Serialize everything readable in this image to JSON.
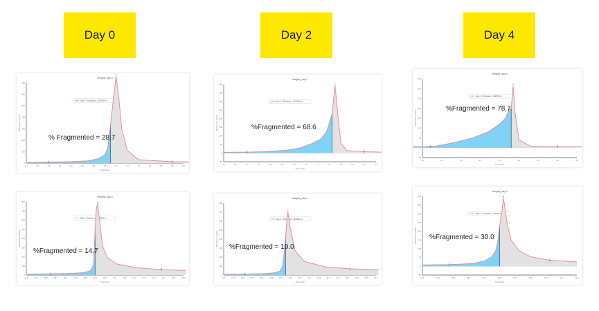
{
  "days": [
    {
      "label": "Day 0"
    },
    {
      "label": "Day 2"
    },
    {
      "label": "Day 4"
    }
  ],
  "colors": {
    "label_bg": "#ffe800",
    "trace": "#e8868a",
    "fragment_fill": "#7fd4f5",
    "main_fill": "#e2e2e2",
    "axis": "#555555"
  },
  "chart_data": [
    {
      "type": "area",
      "title": "Integrity_day 0",
      "legend": "Day 0 - 35 degrees - 220/260 nm",
      "x_ticks": [
        "5.4",
        "5.6",
        "5.8",
        "6.0",
        "6.2",
        "6.4",
        "6.6",
        "6.8",
        "7.0",
        "7.2",
        "7.4",
        "7.6",
        "7.8",
        "8.0",
        "8.2"
      ],
      "y_ticks": [
        "0",
        "100",
        "200",
        "300",
        "400",
        "500",
        "600",
        "700"
      ],
      "xlabel": "Time (min)",
      "ylabel": "Absorbance (mAU)",
      "peak_x": 7.0,
      "split_x": 6.9,
      "fragmented_pct": 28.7,
      "label": "% Fragmented = 28.7",
      "x": [
        5.4,
        5.8,
        6.2,
        6.5,
        6.7,
        6.8,
        6.85,
        6.9,
        6.95,
        7.0,
        7.05,
        7.1,
        7.2,
        7.4,
        8.0,
        8.4
      ],
      "y": [
        8,
        9,
        12,
        20,
        40,
        75,
        130,
        330,
        560,
        760,
        560,
        300,
        110,
        30,
        12,
        10
      ]
    },
    {
      "type": "area",
      "title": "Integrity_day 2",
      "legend": "Day 2 - 35 degrees - 220/260 nm",
      "x_ticks": [
        "5.8",
        "6.0",
        "6.2",
        "6.4",
        "6.6",
        "6.8",
        "7.0",
        "7.2",
        "7.4",
        "7.6",
        "7.8",
        "8.0",
        "8.2",
        "8.4"
      ],
      "y_ticks": [
        "-50",
        "0",
        "50",
        "100",
        "150",
        "200",
        "250",
        "300",
        "350",
        "400"
      ],
      "xlabel": "Time (min)",
      "ylabel": "Absorbance (mAU)",
      "peak_x": 7.7,
      "split_x": 7.65,
      "fragmented_pct": 68.6,
      "label": "%Fragmented = 68.6",
      "x": [
        5.8,
        6.2,
        6.5,
        6.9,
        7.1,
        7.3,
        7.45,
        7.55,
        7.6,
        7.65,
        7.7,
        7.75,
        7.8,
        7.9,
        8.2,
        8.5
      ],
      "y": [
        5,
        6,
        8,
        18,
        30,
        55,
        80,
        120,
        170,
        230,
        395,
        220,
        60,
        15,
        8,
        6
      ]
    },
    {
      "type": "area",
      "title": "Integrity_day 4",
      "legend": "Day 4 - 35 degrees - 220/260 nm",
      "x_ticks": [
        "0.5",
        "1.0",
        "1.5",
        "2.0",
        "2.5",
        "3.0",
        "3.5",
        "4.0",
        "4.5"
      ],
      "y_ticks": [
        "-50",
        "0",
        "50",
        "100",
        "150",
        "200",
        "250",
        "300",
        "350"
      ],
      "xlabel": "Time (min)",
      "ylabel": "Absorbance (mAU)",
      "peak_x": 2.85,
      "split_x": 2.8,
      "fragmented_pct": 78.7,
      "label": "%Fragmented = 78.7",
      "x": [
        0.2,
        0.7,
        0.9,
        1.3,
        1.8,
        2.2,
        2.5,
        2.65,
        2.75,
        2.8,
        2.85,
        2.9,
        3.0,
        3.3,
        4.0,
        4.8
      ],
      "y": [
        5,
        6,
        10,
        25,
        50,
        80,
        120,
        150,
        195,
        200,
        315,
        180,
        40,
        8,
        6,
        5
      ]
    },
    {
      "type": "area",
      "title": "Integrity_day 0",
      "legend": "Day 0 - 35 degrees - 220/260 nm",
      "x_ticks": [
        "27.5",
        "27.9",
        "28.3",
        "28.7",
        "29.1",
        "29.5",
        "29.9",
        "30.3",
        "30.7",
        "31.1",
        "31.5",
        "31.9",
        "32.3",
        "32.7",
        "33.1",
        "33.5",
        "33.9"
      ],
      "y_ticks": [
        "0",
        "100",
        "200",
        "300",
        "400",
        "500",
        "600",
        "700",
        "800"
      ],
      "xlabel": "Time (min)",
      "ylabel": "Absorbance (mAU)",
      "peak_x": 30.4,
      "split_x": 30.3,
      "fragmented_pct": 14.7,
      "label": "%Fragmented = 14.7",
      "x": [
        27.5,
        28.5,
        29.3,
        29.8,
        30.1,
        30.2,
        30.25,
        30.3,
        30.35,
        30.4,
        30.5,
        30.6,
        30.8,
        31.2,
        32.0,
        33.0,
        34.0
      ],
      "y": [
        12,
        14,
        18,
        26,
        45,
        90,
        160,
        500,
        720,
        780,
        560,
        320,
        190,
        120,
        80,
        60,
        50
      ]
    },
    {
      "type": "area",
      "title": "Integrity_day 2",
      "legend": "Day 2 - 35 degrees - 220/260 nm",
      "x_ticks": [
        "27.5",
        "27.9",
        "28.3",
        "28.7",
        "29.1",
        "29.5",
        "29.9",
        "30.3",
        "30.7",
        "31.1",
        "31.5",
        "31.9",
        "32.3",
        "32.7",
        "33.1",
        "33.5",
        "33.9"
      ],
      "y_ticks": [
        "0",
        "100",
        "200",
        "300",
        "400",
        "500",
        "600",
        "700",
        "800"
      ],
      "xlabel": "Time (min)",
      "ylabel": "Absorbance (mAU)",
      "peak_x": 30.2,
      "split_x": 30.1,
      "fragmented_pct": 19.0,
      "label": "%Fragmented = 19.0",
      "x": [
        27.5,
        28.4,
        29.2,
        29.6,
        29.85,
        29.95,
        30.0,
        30.05,
        30.1,
        30.15,
        30.2,
        30.3,
        30.5,
        30.9,
        31.8,
        32.8,
        34.0
      ],
      "y": [
        10,
        12,
        16,
        24,
        42,
        80,
        150,
        260,
        420,
        600,
        700,
        520,
        270,
        150,
        90,
        70,
        60
      ]
    },
    {
      "type": "area",
      "title": "Integrity_day 4",
      "legend": "Day 4 - 35 degrees - 220/260 nm",
      "x_ticks": [
        "27.5",
        "27.9",
        "28.3",
        "28.7",
        "29.1",
        "29.5",
        "29.9",
        "30.3",
        "30.7",
        "31.1",
        "31.5"
      ],
      "y_ticks": [
        "-50",
        "0",
        "50",
        "100",
        "150",
        "200",
        "250",
        "300",
        "350",
        "400"
      ],
      "xlabel": "Time (min)",
      "ylabel": "Absorbance (mAU)",
      "peak_x": 29.6,
      "split_x": 29.5,
      "fragmented_pct": 30.0,
      "label": "%Fragmented = 30.0",
      "x": [
        27.5,
        28.2,
        28.8,
        29.1,
        29.3,
        29.4,
        29.45,
        29.5,
        29.55,
        29.6,
        29.7,
        29.8,
        30.0,
        30.3,
        30.8,
        31.5
      ],
      "y": [
        8,
        10,
        16,
        30,
        55,
        90,
        140,
        230,
        300,
        390,
        240,
        150,
        90,
        55,
        35,
        25
      ]
    }
  ]
}
